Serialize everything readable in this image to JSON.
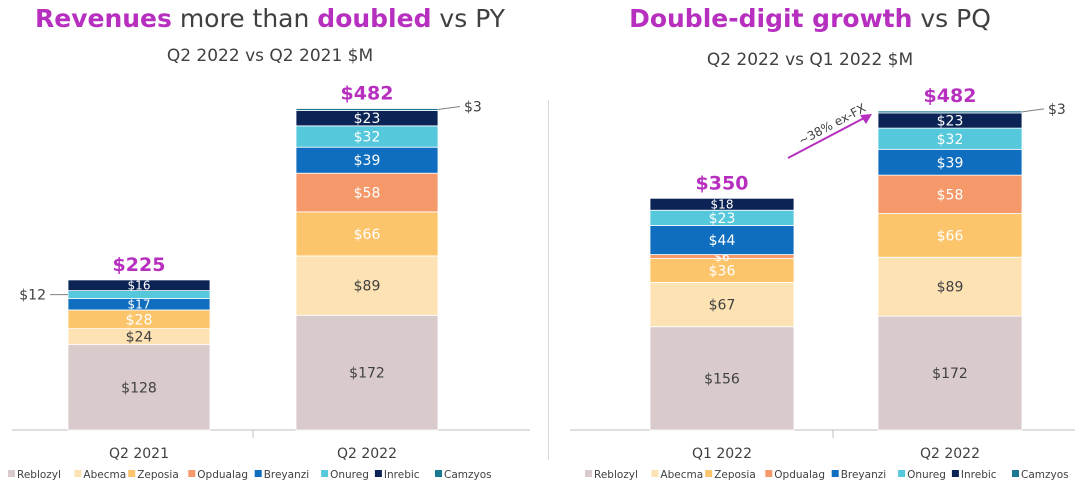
{
  "colors": {
    "Reblozyl": "#d9cbcb",
    "Abecma": "#fde2b4",
    "Zeposia": "#fcc46b",
    "Opdualag": "#f5996a",
    "Breyanzi": "#0f6ebf",
    "Onureg": "#55c8dc",
    "Inrebic": "#0b2455",
    "Camzyos": "#1b7a91",
    "accent": "#b62fbf"
  },
  "panels": [
    {
      "title_hl1": "Revenues",
      "title_mid": " more than ",
      "title_hl2": "doubled",
      "title_end": " vs PY",
      "subtitle": "Q2 2022 vs Q2 2021 $M",
      "legend": [
        "Reblozyl",
        "Abecma",
        "Zeposia",
        "Opdualag",
        "Breyanzi",
        "Onureg",
        "Inrebic",
        "Camzyos"
      ]
    },
    {
      "title_hl1": "Double-digit growth",
      "title_mid": " vs PQ",
      "title_hl2": "",
      "title_end": "",
      "subtitle": "Q2 2022 vs Q1 2022 $M",
      "legend": [
        "Reblozyl",
        "Abecma",
        "Zeposia",
        "Opdualag",
        "Breyanzi",
        "Onureg",
        "Inrebic",
        "Camzyos"
      ]
    }
  ],
  "chart_data": [
    {
      "type": "bar",
      "stacked": true,
      "title": "Revenues more than doubled vs PY",
      "subtitle": "Q2 2022 vs Q2 2021 $M",
      "categories": [
        "Q2 2021",
        "Q2 2022"
      ],
      "totals": [
        "$225",
        "$482"
      ],
      "series": [
        {
          "name": "Reblozyl",
          "values": [
            128,
            172
          ],
          "labels": [
            "$128",
            "$172"
          ]
        },
        {
          "name": "Abecma",
          "values": [
            24,
            89
          ],
          "labels": [
            "$24",
            "$89"
          ]
        },
        {
          "name": "Zeposia",
          "values": [
            28,
            66
          ],
          "labels": [
            "$28",
            "$66"
          ]
        },
        {
          "name": "Opdualag",
          "values": [
            0,
            58
          ],
          "labels": [
            "",
            "$58"
          ]
        },
        {
          "name": "Breyanzi",
          "values": [
            17,
            39
          ],
          "labels": [
            "$17",
            "$39"
          ]
        },
        {
          "name": "Onureg",
          "values": [
            12,
            32
          ],
          "labels": [
            "$12",
            "$32"
          ]
        },
        {
          "name": "Inrebic",
          "values": [
            16,
            23
          ],
          "labels": [
            "$16",
            "$23"
          ]
        },
        {
          "name": "Camzyos",
          "values": [
            0,
            3
          ],
          "labels": [
            "",
            "$3"
          ]
        }
      ],
      "outside_labels": [
        {
          "category": 0,
          "series": "Onureg",
          "text": "$12",
          "side": "left"
        },
        {
          "category": 1,
          "series": "Camzyos",
          "text": "$3",
          "side": "right"
        }
      ],
      "legend_position": "bottom"
    },
    {
      "type": "bar",
      "stacked": true,
      "title": "Double-digit growth vs PQ",
      "subtitle": "Q2 2022 vs Q1 2022 $M",
      "categories": [
        "Q1 2022",
        "Q2 2022"
      ],
      "totals": [
        "$350",
        "$482"
      ],
      "series": [
        {
          "name": "Reblozyl",
          "values": [
            156,
            172
          ],
          "labels": [
            "$156",
            "$172"
          ]
        },
        {
          "name": "Abecma",
          "values": [
            67,
            89
          ],
          "labels": [
            "$67",
            "$89"
          ]
        },
        {
          "name": "Zeposia",
          "values": [
            36,
            66
          ],
          "labels": [
            "$36",
            "$66"
          ]
        },
        {
          "name": "Opdualag",
          "values": [
            6,
            58
          ],
          "labels": [
            "$6",
            "$58"
          ]
        },
        {
          "name": "Breyanzi",
          "values": [
            44,
            39
          ],
          "labels": [
            "$44",
            "$39"
          ]
        },
        {
          "name": "Onureg",
          "values": [
            23,
            32
          ],
          "labels": [
            "$23",
            "$32"
          ]
        },
        {
          "name": "Inrebic",
          "values": [
            18,
            23
          ],
          "labels": [
            "$18",
            "$23"
          ]
        },
        {
          "name": "Camzyos",
          "values": [
            0,
            3
          ],
          "labels": [
            "",
            "$3"
          ]
        }
      ],
      "outside_labels": [
        {
          "category": 1,
          "series": "Camzyos",
          "text": "$3",
          "side": "right"
        }
      ],
      "annotation": "~38% ex-FX",
      "legend_position": "bottom"
    }
  ]
}
